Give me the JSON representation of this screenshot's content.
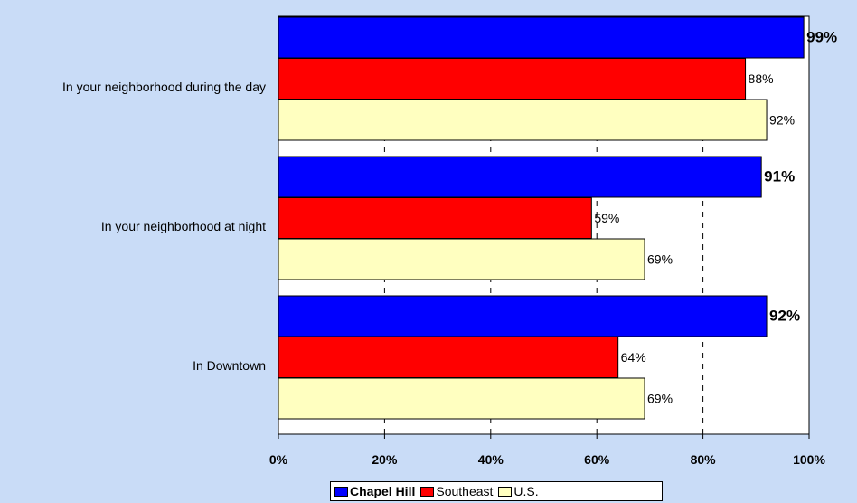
{
  "chart_data": {
    "type": "bar",
    "orientation": "horizontal",
    "categories": [
      "In your neighborhood during the day",
      "In your neighborhood at night",
      "In Downtown"
    ],
    "series": [
      {
        "name": "Chapel Hill",
        "color": "#0000ff",
        "values": [
          99,
          91,
          92
        ],
        "labels": [
          "99%",
          "91%",
          "92%"
        ]
      },
      {
        "name": "Southeast",
        "color": "#ff0000",
        "values": [
          88,
          59,
          64
        ],
        "labels": [
          "88%",
          "59%",
          "64%"
        ]
      },
      {
        "name": "U.S.",
        "color": "#ffffc0",
        "values": [
          92,
          69,
          69
        ],
        "labels": [
          "92%",
          "69%",
          "69%"
        ]
      }
    ],
    "xlim": [
      0,
      100
    ],
    "xticks": [
      0,
      20,
      40,
      60,
      80,
      100
    ],
    "xtick_labels": [
      "0%",
      "20%",
      "40%",
      "60%",
      "80%",
      "100%"
    ],
    "grid": "vertical dashed",
    "legend_position": "bottom",
    "plot_background": "#ffffff",
    "page_background": "#c9dcf7"
  }
}
